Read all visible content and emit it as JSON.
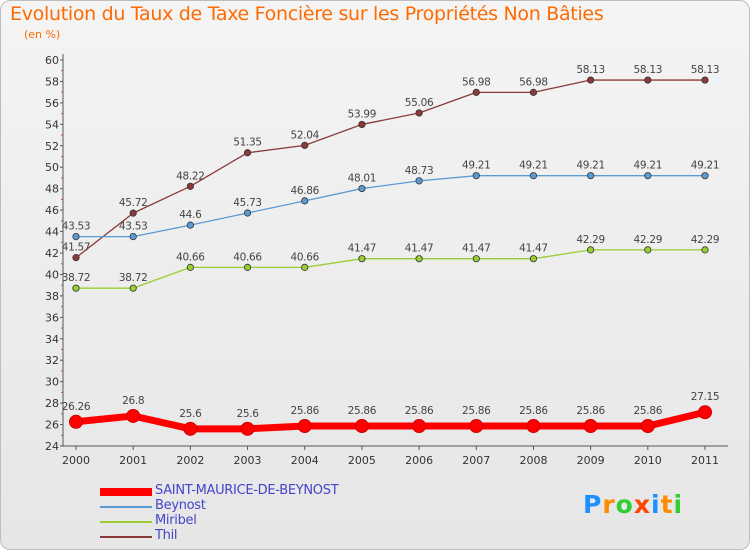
{
  "title": "Evolution du Taux de Taxe Foncière sur les Propriétés Non Bâties",
  "unit_label": "(en %)",
  "logo": {
    "text": "Proxiti",
    "colors": [
      "#1e90ff",
      "#ff8c00",
      "#32cd32",
      "#ff4500",
      "#1e90ff",
      "#ff8c00",
      "#32cd32"
    ]
  },
  "chart_data": {
    "type": "line",
    "title": "Evolution du Taux de Taxe Foncière sur les Propriétés Non Bâties",
    "ylabel": "(en %)",
    "xlabel": "",
    "x": [
      "2000",
      "2001",
      "2002",
      "2003",
      "2004",
      "2005",
      "2006",
      "2007",
      "2008",
      "2009",
      "2010",
      "2011"
    ],
    "ylim": [
      24,
      60
    ],
    "yticks": [
      24,
      26,
      28,
      30,
      32,
      34,
      36,
      38,
      40,
      42,
      44,
      46,
      48,
      50,
      52,
      54,
      56,
      58,
      60
    ],
    "grid": false,
    "legend": "bottom-left",
    "series": [
      {
        "name": "SAINT-MAURICE-DE-BEYNOST",
        "color": "#ff0000",
        "values": [
          26.26,
          26.8,
          25.6,
          25.6,
          25.86,
          25.86,
          25.86,
          25.86,
          25.86,
          25.86,
          25.86,
          27.15
        ],
        "labels": [
          "26.26",
          "26.8",
          "25.6",
          "25.6",
          "25.86",
          "25.86",
          "25.86",
          "25.86",
          "25.86",
          "25.86",
          "25.86",
          "27.15"
        ]
      },
      {
        "name": "Beynost",
        "color": "#5b9bd5",
        "values": [
          43.53,
          43.53,
          44.6,
          45.73,
          46.86,
          48.01,
          48.73,
          49.21,
          49.21,
          49.21,
          49.21,
          49.21
        ],
        "labels": [
          "43.53",
          "43.53",
          "44.6",
          "45.73",
          "46.86",
          "48.01",
          "48.73",
          "49.21",
          "49.21",
          "49.21",
          "49.21",
          "49.21"
        ]
      },
      {
        "name": "Miribel",
        "color": "#9acd32",
        "values": [
          38.72,
          38.72,
          40.66,
          40.66,
          40.66,
          41.47,
          41.47,
          41.47,
          41.47,
          42.29,
          42.29,
          42.29
        ],
        "labels": [
          "38.72",
          "38.72",
          "40.66",
          "40.66",
          "40.66",
          "41.47",
          "41.47",
          "41.47",
          "41.47",
          "42.29",
          "42.29",
          "42.29"
        ]
      },
      {
        "name": "Thil",
        "color": "#8b3a3a",
        "values": [
          41.57,
          45.72,
          48.22,
          51.35,
          52.04,
          53.99,
          55.06,
          56.98,
          56.98,
          58.13,
          58.13,
          58.13
        ],
        "labels": [
          "41.57",
          "45.72",
          "48.22",
          "51.35",
          "52.04",
          "53.99",
          "55.06",
          "56.98",
          "56.98",
          "58.13",
          "58.13",
          "58.13"
        ]
      }
    ]
  }
}
